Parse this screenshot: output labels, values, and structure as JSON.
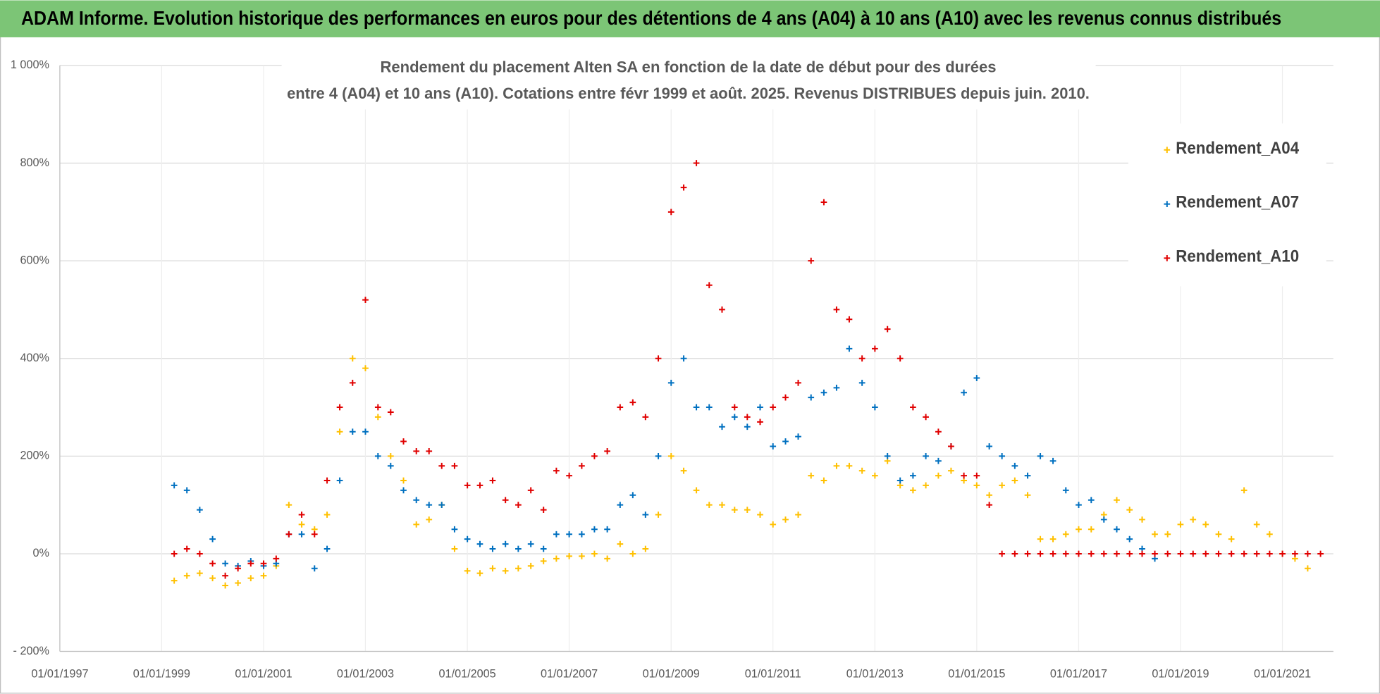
{
  "header": "ADAM Informe. Evolution historique des performances en euros pour des détentions de 4 ans (A04) à 10 ans (A10) avec les revenus connus distribués",
  "chart_data": {
    "type": "scatter",
    "title": [
      "Rendement du placement Alten SA en fonction de la date de début pour des durées",
      "entre 4 (A04) et 10 ans (A10).  Cotations entre févr 1999 et août. 2025.  Revenus DISTRIBUES depuis juin. 2010."
    ],
    "x": [
      "01/04/1999",
      "01/07/1999",
      "01/10/1999",
      "01/01/2000",
      "01/04/2000",
      "01/07/2000",
      "01/10/2000",
      "01/01/2001",
      "01/04/2001",
      "01/07/2001",
      "01/10/2001",
      "01/01/2002",
      "01/04/2002",
      "01/07/2002",
      "01/10/2002",
      "01/01/2003",
      "01/04/2003",
      "01/07/2003",
      "01/10/2003",
      "01/01/2004",
      "01/04/2004",
      "01/07/2004",
      "01/10/2004",
      "01/01/2005",
      "01/04/2005",
      "01/07/2005",
      "01/10/2005",
      "01/01/2006",
      "01/04/2006",
      "01/07/2006",
      "01/10/2006",
      "01/01/2007",
      "01/04/2007",
      "01/07/2007",
      "01/10/2007",
      "01/01/2008",
      "01/04/2008",
      "01/07/2008",
      "01/10/2008",
      "01/01/2009",
      "01/04/2009",
      "01/07/2009",
      "01/10/2009",
      "01/01/2010",
      "01/04/2010",
      "01/07/2010",
      "01/10/2010",
      "01/01/2011",
      "01/04/2011",
      "01/07/2011",
      "01/10/2011",
      "01/01/2012",
      "01/04/2012",
      "01/07/2012",
      "01/10/2012",
      "01/01/2013",
      "01/04/2013",
      "01/07/2013",
      "01/10/2013",
      "01/01/2014",
      "01/04/2014",
      "01/07/2014",
      "01/10/2014",
      "01/01/2015",
      "01/04/2015",
      "01/07/2015",
      "01/10/2015",
      "01/01/2016",
      "01/04/2016",
      "01/07/2016",
      "01/10/2016",
      "01/01/2017",
      "01/04/2017",
      "01/07/2017",
      "01/10/2017",
      "01/01/2018",
      "01/04/2018",
      "01/07/2018",
      "01/10/2018",
      "01/01/2019",
      "01/04/2019",
      "01/07/2019",
      "01/10/2019",
      "01/01/2020",
      "01/04/2020",
      "01/07/2020",
      "01/10/2020",
      "01/01/2021",
      "01/04/2021",
      "01/07/2021",
      "01/10/2021"
    ],
    "series": [
      {
        "name": "Rendement_A04",
        "color": "#ffc000",
        "values": [
          -55,
          -45,
          -40,
          -50,
          -65,
          -60,
          -50,
          -45,
          -25,
          100,
          60,
          50,
          80,
          250,
          400,
          380,
          280,
          200,
          150,
          60,
          70,
          100,
          10,
          -35,
          -40,
          -30,
          -35,
          -30,
          -25,
          -15,
          -10,
          -5,
          -5,
          0,
          -10,
          20,
          0,
          10,
          80,
          200,
          170,
          130,
          100,
          100,
          90,
          90,
          80,
          60,
          70,
          80,
          160,
          150,
          180,
          180,
          170,
          160,
          190,
          140,
          130,
          140,
          160,
          170,
          150,
          140,
          120,
          140,
          150,
          120,
          30,
          30,
          40,
          50,
          50,
          80,
          110,
          90,
          70,
          40,
          40,
          60,
          70,
          60,
          40,
          30,
          130,
          60,
          40,
          0,
          -10,
          -30,
          null
        ]
      },
      {
        "name": "Rendement_A07",
        "color": "#0070c0",
        "values": [
          140,
          130,
          90,
          30,
          -20,
          -25,
          -15,
          -25,
          -20,
          40,
          40,
          -30,
          10,
          150,
          250,
          250,
          200,
          180,
          130,
          110,
          100,
          100,
          50,
          30,
          20,
          10,
          20,
          10,
          20,
          10,
          40,
          40,
          40,
          50,
          50,
          100,
          120,
          80,
          200,
          350,
          400,
          300,
          300,
          260,
          280,
          260,
          300,
          220,
          230,
          240,
          320,
          330,
          340,
          420,
          350,
          300,
          200,
          150,
          160,
          200,
          190,
          220,
          330,
          360,
          220,
          200,
          180,
          160,
          200,
          190,
          130,
          100,
          110,
          70,
          50,
          30,
          10,
          -10,
          null,
          null,
          null,
          null,
          null,
          null,
          null,
          null,
          null,
          null,
          null,
          null,
          null
        ]
      },
      {
        "name": "Rendement_A10",
        "color": "#e00000",
        "values": [
          0,
          10,
          0,
          -20,
          -45,
          -30,
          -20,
          -20,
          -10,
          40,
          80,
          40,
          150,
          300,
          350,
          520,
          300,
          290,
          230,
          210,
          210,
          180,
          180,
          140,
          140,
          150,
          110,
          100,
          130,
          90,
          170,
          160,
          180,
          200,
          210,
          300,
          310,
          280,
          400,
          700,
          750,
          800,
          550,
          500,
          300,
          280,
          270,
          300,
          320,
          350,
          600,
          720,
          500,
          480,
          400,
          420,
          460,
          400,
          300,
          280,
          250,
          220,
          160,
          160,
          100,
          0,
          0,
          0,
          0,
          0,
          0,
          0,
          0,
          0,
          0,
          0,
          0,
          0,
          0,
          0,
          0,
          0,
          0,
          0,
          0,
          0,
          0,
          0,
          0,
          0,
          0
        ]
      }
    ],
    "xlim": [
      "01/01/1997",
      "01/01/2022"
    ],
    "xticks": [
      "01/01/1997",
      "01/01/1999",
      "01/01/2001",
      "01/01/2003",
      "01/01/2005",
      "01/01/2007",
      "01/01/2009",
      "01/01/2011",
      "01/01/2013",
      "01/01/2015",
      "01/01/2017",
      "01/01/2019",
      "01/01/2021"
    ],
    "ylim": [
      -200,
      1000
    ],
    "yticks": [
      {
        "value": -200,
        "label": "- 200%"
      },
      {
        "value": 0,
        "label": "0%"
      },
      {
        "value": 200,
        "label": "200%"
      },
      {
        "value": 400,
        "label": "400%"
      },
      {
        "value": 600,
        "label": "600%"
      },
      {
        "value": 800,
        "label": "800%"
      },
      {
        "value": 1000,
        "label": "1 000%"
      }
    ],
    "grid": true,
    "legend": "right"
  }
}
